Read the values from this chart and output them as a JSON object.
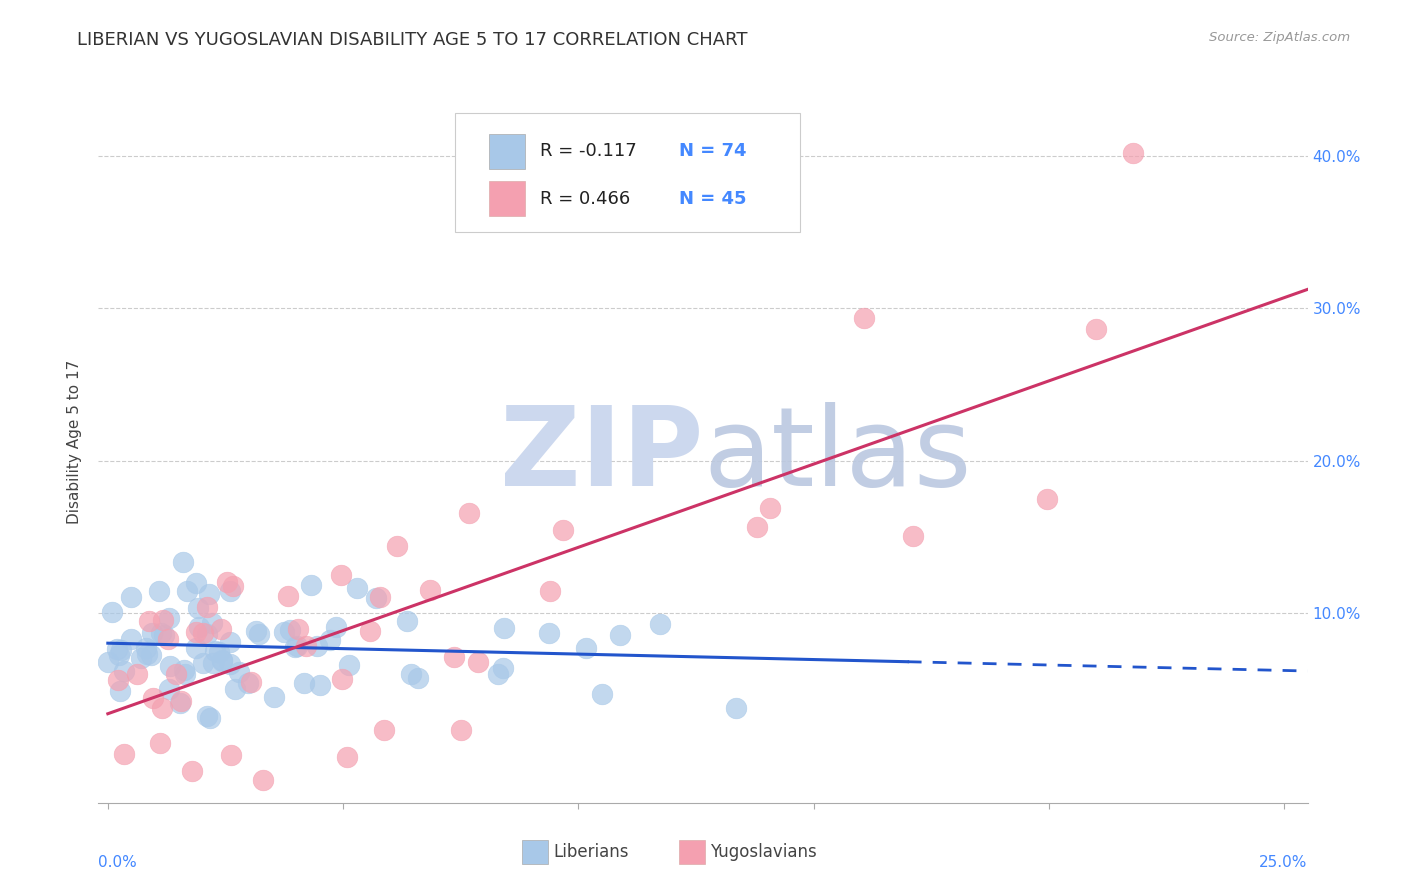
{
  "title": "LIBERIAN VS YUGOSLAVIAN DISABILITY AGE 5 TO 17 CORRELATION CHART",
  "source_text": "Source: ZipAtlas.com",
  "ylabel": "Disability Age 5 to 17",
  "xlim": [
    -0.002,
    0.255
  ],
  "ylim": [
    -0.025,
    0.45
  ],
  "blue_R": -0.117,
  "blue_N": 74,
  "pink_R": 0.466,
  "pink_N": 45,
  "blue_color": "#a8c8e8",
  "pink_color": "#f4a0b0",
  "blue_line_color": "#2255cc",
  "pink_line_color": "#cc3366",
  "watermark_zip_color": "#ccd8ee",
  "watermark_atlas_color": "#bbc8e0",
  "legend_label_blue": "Liberians",
  "legend_label_pink": "Yugoslavians",
  "title_fontsize": 13,
  "axis_label_fontsize": 11,
  "ytick_color": "#4488ff",
  "xtick_color": "#4488ff",
  "grid_color": "#cccccc",
  "source_color": "#999999"
}
